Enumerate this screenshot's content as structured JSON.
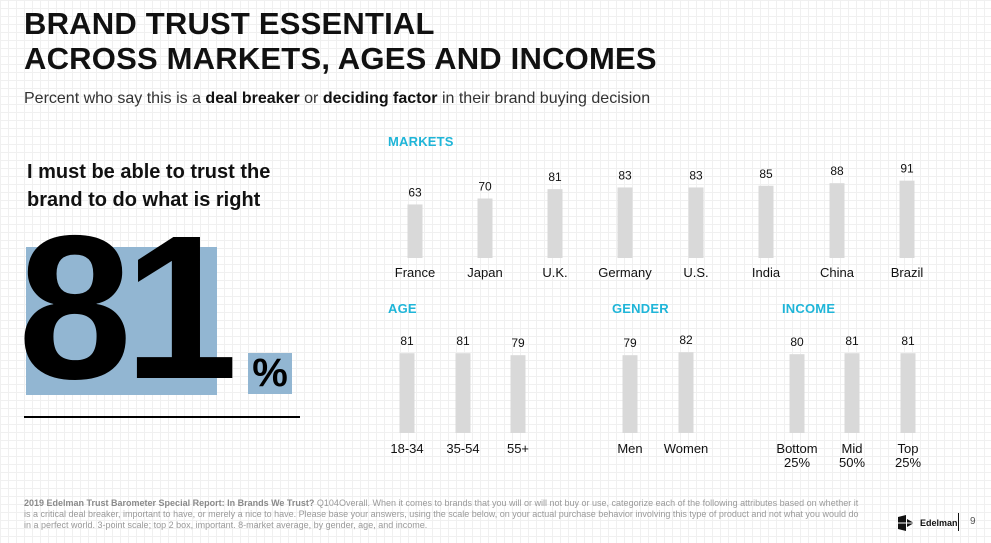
{
  "header": {
    "title_line1": "BRAND TRUST ESSENTIAL",
    "title_line2": "ACROSS MARKETS, AGES AND INCOMES",
    "subtitle_pre": "Percent who say this is a ",
    "subtitle_bold1": "deal breaker",
    "subtitle_mid": " or ",
    "subtitle_bold2": "deciding factor",
    "subtitle_post": " in their brand buying decision"
  },
  "highlight": {
    "statement": "I must be able to trust the brand to do what is right",
    "value": "81",
    "unit": "%"
  },
  "colors": {
    "accent": "#1fb5d8",
    "bar": "#d9d9d9",
    "highlight_box": "#92b6d2"
  },
  "chart_data": [
    {
      "type": "bar",
      "title": "MARKETS",
      "categories": [
        "France",
        "Japan",
        "U.K.",
        "Germany",
        "U.S.",
        "India",
        "China",
        "Brazil"
      ],
      "values": [
        63,
        70,
        81,
        83,
        83,
        85,
        88,
        91
      ],
      "ylim": [
        0,
        100
      ]
    },
    {
      "type": "bar",
      "title": "AGE",
      "categories": [
        "18-34",
        "35-54",
        "55+"
      ],
      "values": [
        81,
        81,
        79
      ],
      "ylim": [
        0,
        100
      ]
    },
    {
      "type": "bar",
      "title": "GENDER",
      "categories": [
        "Men",
        "Women"
      ],
      "values": [
        79,
        82
      ],
      "ylim": [
        0,
        100
      ]
    },
    {
      "type": "bar",
      "title": "INCOME",
      "categories": [
        "Bottom 25%",
        "Mid 50%",
        "Top 25%"
      ],
      "values": [
        80,
        81,
        81
      ],
      "ylim": [
        0,
        100
      ]
    }
  ],
  "footer": {
    "source_bold": "2019 Edelman Trust Barometer Special Report: In Brands We Trust?",
    "source_text": " Q104Overall. When it comes to brands that you will or will not buy or use, categorize each of the following attributes based on whether it is a critical deal breaker, important to have, or merely a nice to have. Please base your answers, using the scale below, on your actual purchase behavior involving this type of product and not what you would do in a perfect world. 3-point scale; top 2 box, important. 8-market average, by gender, age, and income.",
    "logo_text": "Edelman",
    "logo_icon": "edelman-logo-icon",
    "page_number": "9"
  }
}
